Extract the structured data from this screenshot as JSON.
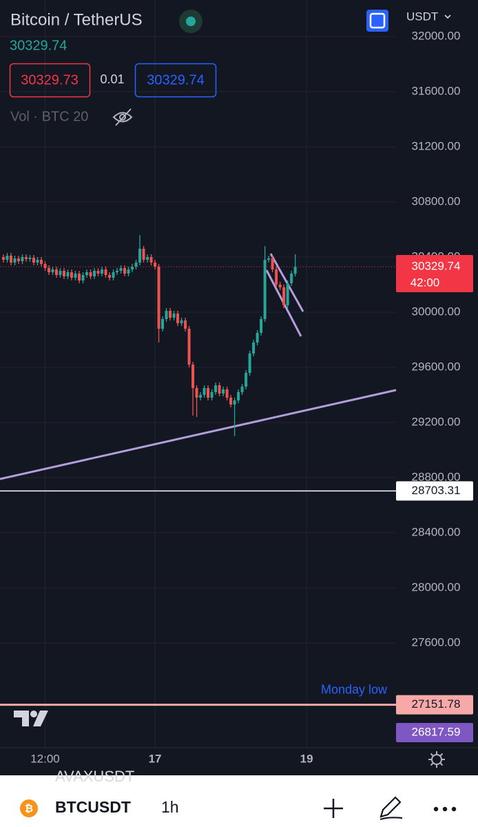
{
  "header": {
    "symbol_title": "Bitcoin / TetherUS",
    "currency": "USDT",
    "last_price": 30329.74,
    "bid": 30329.73,
    "spread": 0.01,
    "ask": 30329.74,
    "volume_label": "Vol · BTC 20"
  },
  "chart_data": {
    "type": "candlestick",
    "open": [
      30400,
      30380,
      30410,
      30360,
      30390,
      30370,
      30400,
      30385,
      30395,
      30360,
      30380,
      30350,
      30320,
      30290,
      30310,
      30270,
      30300,
      30260,
      30290,
      30250,
      30280,
      30230,
      30270,
      30290,
      30260,
      30300,
      30280,
      30310,
      30270,
      30250,
      30290,
      30300,
      30320,
      30280,
      30310,
      30330,
      30360,
      30460,
      30380,
      30400,
      30360,
      30330,
      29880,
      29950,
      30010,
      29960,
      29990,
      29920,
      29940,
      29880,
      29620,
      29450,
      29380,
      29400,
      29450,
      29380,
      29420,
      29470,
      29410,
      29440,
      29380,
      29330,
      29360,
      29420,
      29460,
      29560,
      29700,
      29780,
      29850,
      29950,
      30380,
      30390,
      30310,
      30200,
      30180,
      30050,
      30210,
      30280
    ],
    "high": [
      30420,
      30430,
      30430,
      30410,
      30410,
      30420,
      30420,
      30415,
      30415,
      30400,
      30400,
      30370,
      30340,
      30330,
      30330,
      30320,
      30320,
      30310,
      30310,
      30300,
      30300,
      30290,
      30310,
      30310,
      30320,
      30320,
      30330,
      30330,
      30290,
      30310,
      30320,
      30340,
      30340,
      30330,
      30350,
      30380,
      30560,
      30480,
      30420,
      30420,
      30380,
      30350,
      29970,
      30030,
      30030,
      30010,
      30010,
      29960,
      29960,
      29900,
      29640,
      29470,
      29420,
      29470,
      29470,
      29440,
      29490,
      29490,
      29460,
      29460,
      29400,
      29380,
      29440,
      29480,
      29580,
      29720,
      29800,
      29870,
      29970,
      30480,
      30410,
      30410,
      30330,
      30220,
      30200,
      30230,
      30300,
      30420
    ],
    "low": [
      30360,
      30360,
      30340,
      30340,
      30350,
      30350,
      30365,
      30365,
      30340,
      30340,
      30330,
      30300,
      30270,
      30270,
      30250,
      30250,
      30240,
      30240,
      30230,
      30230,
      30210,
      30210,
      30250,
      30240,
      30240,
      30260,
      30260,
      30250,
      30230,
      30230,
      30270,
      30280,
      30260,
      30260,
      30290,
      30310,
      30340,
      30360,
      30360,
      30340,
      30310,
      29780,
      29860,
      29930,
      29940,
      29940,
      29900,
      29900,
      29860,
      29600,
      29250,
      29240,
      29360,
      29380,
      29360,
      29360,
      29400,
      29390,
      29390,
      29360,
      29310,
      29100,
      29340,
      29400,
      29440,
      29540,
      29680,
      29760,
      29830,
      29930,
      30360,
      30290,
      30180,
      30160,
      30030,
      30030,
      30190,
      30260
    ],
    "close": [
      30380,
      30410,
      30360,
      30390,
      30370,
      30400,
      30385,
      30395,
      30360,
      30380,
      30350,
      30320,
      30290,
      30310,
      30270,
      30300,
      30260,
      30290,
      30250,
      30280,
      30230,
      30270,
      30290,
      30260,
      30300,
      30280,
      30310,
      30270,
      30250,
      30290,
      30300,
      30320,
      30280,
      30310,
      30330,
      30360,
      30460,
      30380,
      30400,
      30360,
      30330,
      29880,
      29950,
      30010,
      29960,
      29990,
      29920,
      29940,
      29880,
      29620,
      29450,
      29380,
      29400,
      29450,
      29380,
      29420,
      29470,
      29410,
      29440,
      29380,
      29330,
      29360,
      29420,
      29460,
      29560,
      29700,
      29780,
      29850,
      29950,
      30380,
      30390,
      30310,
      30200,
      30180,
      30050,
      30210,
      30280,
      30329.74
    ],
    "up_color": "#26a69a",
    "down_color": "#ef5350",
    "xlim": [
      -0.9,
      103.6
    ],
    "xticks": [
      {
        "value": 11,
        "label": "12:00"
      },
      {
        "value": 40,
        "label": "17"
      },
      {
        "value": 80,
        "label": "19"
      }
    ],
    "ylim": [
      26840,
      32265
    ],
    "yticks": [
      {
        "value": 27600,
        "label": "27600.00"
      },
      {
        "value": 28000,
        "label": "28000.00"
      },
      {
        "value": 28400,
        "label": "28400.00"
      },
      {
        "value": 28800,
        "label": "28800.00"
      },
      {
        "value": 29200,
        "label": "29200.00"
      },
      {
        "value": 29600,
        "label": "29600.00"
      },
      {
        "value": 30000,
        "label": "30000.00"
      },
      {
        "value": 30400,
        "label": "30400.00"
      },
      {
        "value": 30800,
        "label": "30800.00"
      },
      {
        "value": 31200,
        "label": "31200.00"
      },
      {
        "value": 31600,
        "label": "31600.00"
      },
      {
        "value": 32000,
        "label": "32000.00"
      }
    ],
    "grid": true,
    "current_price": {
      "value": 30329.74,
      "countdown": "42:00",
      "color": "#f23645"
    },
    "price_lines": [
      {
        "value": 28703.31,
        "color": "#ffffff"
      },
      {
        "value": 27151.78,
        "color": "#f7a9a8",
        "annotation": "Monday low"
      }
    ],
    "off_scale_tag": {
      "value": 26817.59,
      "color": "#7e57c2"
    }
  },
  "footer": {
    "ghost_text": "AVAXUSDT",
    "symbol": "BTCUSDT",
    "interval": "1h"
  }
}
